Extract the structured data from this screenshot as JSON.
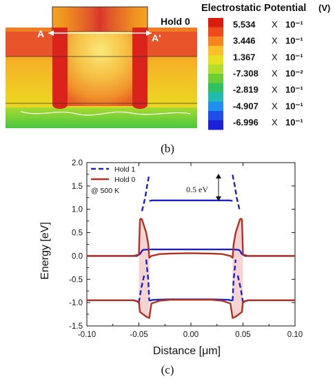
{
  "panel_b": {
    "state_label": "Hold 0",
    "cutline_left": "A",
    "cutline_right": "A'",
    "caption": "(b)",
    "colorbar": {
      "title": "Electrostatic Potential",
      "unit": "(V)",
      "entries": [
        {
          "mantissa": "5.534",
          "times": "X",
          "exponent": "10⁻¹"
        },
        {
          "mantissa": "3.446",
          "times": "X",
          "exponent": "10⁻¹"
        },
        {
          "mantissa": "1.367",
          "times": "X",
          "exponent": "10⁻¹"
        },
        {
          "mantissa": "-7.308",
          "times": "X",
          "exponent": "10⁻²"
        },
        {
          "mantissa": "-2.819",
          "times": "X",
          "exponent": "10⁻¹"
        },
        {
          "mantissa": "-4.907",
          "times": "X",
          "exponent": "10⁻¹"
        },
        {
          "mantissa": "-6.996",
          "times": "X",
          "exponent": "10⁻¹"
        }
      ],
      "colors": [
        "#dd1c10",
        "#ef4a1b",
        "#f6851f",
        "#fbbf2a",
        "#e7e020",
        "#b3dd2b",
        "#6ccf38",
        "#32c162",
        "#22b9b3",
        "#1f8ff0",
        "#1f4cec",
        "#1c1fd8"
      ]
    }
  },
  "chart_data": {
    "type": "line",
    "caption": "(c)",
    "xlabel": "Distance [μm]",
    "ylabel": "Energy [eV]",
    "xlim": [
      -0.1,
      0.1
    ],
    "ylim": [
      -1.5,
      2.0
    ],
    "xticks": [
      "-0.10",
      "-0.05",
      "0.00",
      "0.05",
      "0.10"
    ],
    "yticks": [
      "-1.5",
      "-1.0",
      "-0.5",
      "0.0",
      "0.5",
      "1.0",
      "1.5",
      "2.0"
    ],
    "legend": [
      "Hold 1",
      "Hold 0"
    ],
    "note": "@ 500 K",
    "annotation": "0.5 eV",
    "series": [
      {
        "name": "Hold 1",
        "color": "#1b1fc8",
        "segments": [
          {
            "style": "solid",
            "points": [
              [
                -0.1,
                0.0
              ],
              [
                -0.06,
                0.0
              ],
              [
                -0.052,
                0.0
              ],
              [
                -0.049,
                0.04
              ],
              [
                -0.047,
                0.11
              ],
              [
                -0.046,
                0.13
              ],
              [
                -0.04,
                0.14
              ],
              [
                0.0,
                0.14
              ],
              [
                0.04,
                0.14
              ],
              [
                0.046,
                0.13
              ],
              [
                0.047,
                0.11
              ],
              [
                0.049,
                0.04
              ],
              [
                0.052,
                0.0
              ],
              [
                0.06,
                0.0
              ],
              [
                0.1,
                0.0
              ]
            ]
          },
          {
            "style": "solid",
            "points": [
              [
                -0.1,
                -0.95
              ],
              [
                -0.06,
                -0.95
              ],
              [
                -0.055,
                -0.95
              ],
              [
                -0.052,
                -0.97
              ],
              [
                -0.05,
                -1.0
              ]
            ]
          },
          {
            "style": "solid",
            "points": [
              [
                -0.04,
                -0.96
              ],
              [
                -0.036,
                -0.94
              ],
              [
                -0.02,
                -0.93
              ],
              [
                0.0,
                -0.93
              ],
              [
                0.02,
                -0.93
              ],
              [
                0.036,
                -0.94
              ],
              [
                0.04,
                -0.96
              ]
            ]
          },
          {
            "style": "solid",
            "points": [
              [
                0.05,
                -1.0
              ],
              [
                0.052,
                -0.97
              ],
              [
                0.055,
                -0.95
              ],
              [
                0.06,
                -0.95
              ],
              [
                0.1,
                -0.95
              ]
            ]
          },
          {
            "style": "solid",
            "points": [
              [
                -0.04,
                1.18
              ],
              [
                -0.037,
                1.19
              ],
              [
                0.0,
                1.19
              ],
              [
                0.037,
                1.19
              ],
              [
                0.04,
                1.18
              ]
            ]
          },
          {
            "style": "dashed",
            "points": [
              [
                -0.05,
                -1.0
              ],
              [
                -0.048,
                -0.72
              ],
              [
                -0.046,
                -0.52
              ],
              [
                -0.045,
                -0.42
              ]
            ]
          },
          {
            "style": "dashed",
            "points": [
              [
                -0.043,
                -0.08
              ],
              [
                -0.041,
                -0.52
              ],
              [
                -0.04,
                -0.96
              ]
            ]
          },
          {
            "style": "dashed",
            "points": [
              [
                -0.047,
                0.96
              ],
              [
                -0.044,
                1.25
              ],
              [
                -0.042,
                1.52
              ],
              [
                -0.04,
                1.75
              ]
            ]
          },
          {
            "style": "dashed",
            "points": [
              [
                0.04,
                1.74
              ],
              [
                0.042,
                1.52
              ],
              [
                0.044,
                1.25
              ],
              [
                0.047,
                0.96
              ]
            ]
          },
          {
            "style": "dashed",
            "points": [
              [
                0.04,
                -0.96
              ],
              [
                0.041,
                -0.52
              ],
              [
                0.043,
                -0.08
              ]
            ]
          },
          {
            "style": "dashed",
            "points": [
              [
                0.045,
                -0.42
              ],
              [
                0.046,
                -0.52
              ],
              [
                0.048,
                -0.72
              ],
              [
                0.05,
                -1.0
              ]
            ]
          }
        ]
      },
      {
        "name": "Hold 0",
        "color": "#b5301f",
        "segments": [
          {
            "style": "solid",
            "points": [
              [
                -0.1,
                0.0
              ],
              [
                -0.055,
                0.0
              ],
              [
                -0.05,
                0.03
              ],
              [
                -0.049,
                0.78
              ],
              [
                -0.048,
                0.8
              ],
              [
                -0.047,
                0.78
              ],
              [
                -0.043,
                0.5
              ],
              [
                -0.041,
                0.25
              ],
              [
                -0.04,
                -0.04
              ],
              [
                -0.038,
                0.0
              ],
              [
                -0.03,
                0.04
              ],
              [
                -0.02,
                0.05
              ],
              [
                0.0,
                0.06
              ],
              [
                0.02,
                0.05
              ],
              [
                0.03,
                0.04
              ],
              [
                0.038,
                0.0
              ],
              [
                0.04,
                -0.04
              ],
              [
                0.041,
                0.25
              ],
              [
                0.043,
                0.5
              ],
              [
                0.047,
                0.78
              ],
              [
                0.048,
                0.8
              ],
              [
                0.049,
                0.78
              ],
              [
                0.05,
                0.03
              ],
              [
                0.055,
                0.0
              ],
              [
                0.1,
                0.0
              ]
            ]
          },
          {
            "style": "solid",
            "points": [
              [
                -0.1,
                -0.95
              ],
              [
                -0.055,
                -0.95
              ],
              [
                -0.05,
                -0.98
              ],
              [
                -0.049,
                -1.2
              ],
              [
                -0.046,
                -1.25
              ],
              [
                -0.043,
                -1.3
              ],
              [
                -0.04,
                -1.33
              ],
              [
                -0.038,
                -1.02
              ],
              [
                -0.03,
                -0.96
              ],
              [
                -0.02,
                -0.94
              ],
              [
                0.0,
                -0.94
              ],
              [
                0.02,
                -0.94
              ],
              [
                0.03,
                -0.96
              ],
              [
                0.038,
                -1.02
              ],
              [
                0.04,
                -1.33
              ],
              [
                0.043,
                -1.3
              ],
              [
                0.046,
                -1.25
              ],
              [
                0.049,
                -1.2
              ],
              [
                0.05,
                -0.98
              ],
              [
                0.055,
                -0.95
              ],
              [
                0.1,
                -0.95
              ]
            ]
          }
        ]
      }
    ],
    "shading": {
      "color": "#f4c4c4",
      "regions": [
        [
          [
            -0.05,
            0.03
          ],
          [
            -0.049,
            0.78
          ],
          [
            -0.048,
            0.8
          ],
          [
            -0.047,
            0.78
          ],
          [
            -0.043,
            0.5
          ],
          [
            -0.041,
            0.25
          ],
          [
            -0.04,
            -0.04
          ],
          [
            -0.04,
            -1.33
          ],
          [
            -0.043,
            -1.3
          ],
          [
            -0.046,
            -1.25
          ],
          [
            -0.049,
            -1.2
          ],
          [
            -0.05,
            -0.98
          ]
        ],
        [
          [
            0.04,
            -0.04
          ],
          [
            0.041,
            0.25
          ],
          [
            0.043,
            0.5
          ],
          [
            0.047,
            0.78
          ],
          [
            0.048,
            0.8
          ],
          [
            0.049,
            0.78
          ],
          [
            0.05,
            0.03
          ],
          [
            0.05,
            -0.98
          ],
          [
            0.049,
            -1.2
          ],
          [
            0.046,
            -1.25
          ],
          [
            0.043,
            -1.3
          ],
          [
            0.04,
            -1.33
          ]
        ]
      ]
    }
  }
}
